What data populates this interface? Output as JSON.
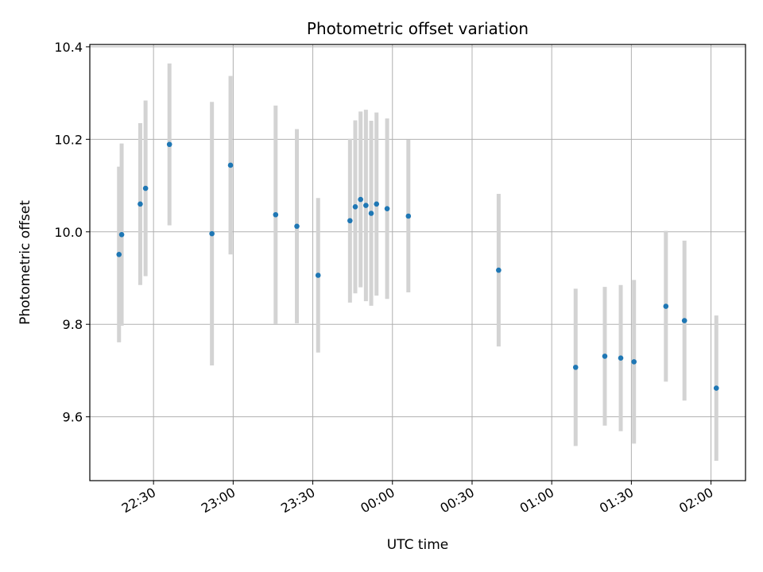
{
  "chart_data": {
    "type": "scatter",
    "title": "Photometric offset variation",
    "xlabel": "UTC time",
    "ylabel": "Photometric offset",
    "ylim": [
      9.462,
      10.405
    ],
    "xlim": [
      "22:06",
      "02:13"
    ],
    "grid": true,
    "x_tick_labels": [
      "22:30",
      "23:00",
      "23:30",
      "00:00",
      "00:30",
      "01:00",
      "01:30",
      "02:00"
    ],
    "x_ticks": [
      "22:30",
      "23:00",
      "23:30",
      "00:00",
      "00:30",
      "01:00",
      "01:30",
      "02:00"
    ],
    "y_ticks": [
      9.6,
      9.8,
      10.0,
      10.2,
      10.4
    ],
    "y_tick_labels": [
      "9.6",
      "9.8",
      "10.0",
      "10.2",
      "10.4"
    ],
    "point_color": "#1f77b4",
    "errorbar_color": "#d3d3d3",
    "series": [
      {
        "points": [
          {
            "x": "22:17",
            "y": 9.951,
            "err": 0.19
          },
          {
            "x": "22:18",
            "y": 9.994,
            "err": 0.197
          },
          {
            "x": "22:25",
            "y": 10.06,
            "err": 0.175
          },
          {
            "x": "22:27",
            "y": 10.094,
            "err": 0.19
          },
          {
            "x": "22:36",
            "y": 10.189,
            "err": 0.175
          },
          {
            "x": "22:52",
            "y": 9.996,
            "err": 0.285
          },
          {
            "x": "22:59",
            "y": 10.144,
            "err": 0.193
          },
          {
            "x": "23:16",
            "y": 10.037,
            "err": 0.236
          },
          {
            "x": "23:24",
            "y": 10.012,
            "err": 0.21
          },
          {
            "x": "23:32",
            "y": 9.906,
            "err": 0.167
          },
          {
            "x": "23:44",
            "y": 10.024,
            "err": 0.177
          },
          {
            "x": "23:46",
            "y": 10.054,
            "err": 0.187
          },
          {
            "x": "23:48",
            "y": 10.07,
            "err": 0.19
          },
          {
            "x": "23:50",
            "y": 10.057,
            "err": 0.207
          },
          {
            "x": "23:52",
            "y": 10.04,
            "err": 0.2
          },
          {
            "x": "23:54",
            "y": 10.06,
            "err": 0.198
          },
          {
            "x": "23:58",
            "y": 10.05,
            "err": 0.195
          },
          {
            "x": "00:06",
            "y": 10.034,
            "err": 0.165
          },
          {
            "x": "00:40",
            "y": 9.917,
            "err": 0.165
          },
          {
            "x": "01:09",
            "y": 9.707,
            "err": 0.17
          },
          {
            "x": "01:20",
            "y": 9.731,
            "err": 0.15
          },
          {
            "x": "01:26",
            "y": 9.727,
            "err": 0.158
          },
          {
            "x": "01:31",
            "y": 9.719,
            "err": 0.177
          },
          {
            "x": "01:43",
            "y": 9.839,
            "err": 0.163
          },
          {
            "x": "01:50",
            "y": 9.808,
            "err": 0.173
          },
          {
            "x": "02:02",
            "y": 9.662,
            "err": 0.157
          }
        ]
      }
    ]
  }
}
